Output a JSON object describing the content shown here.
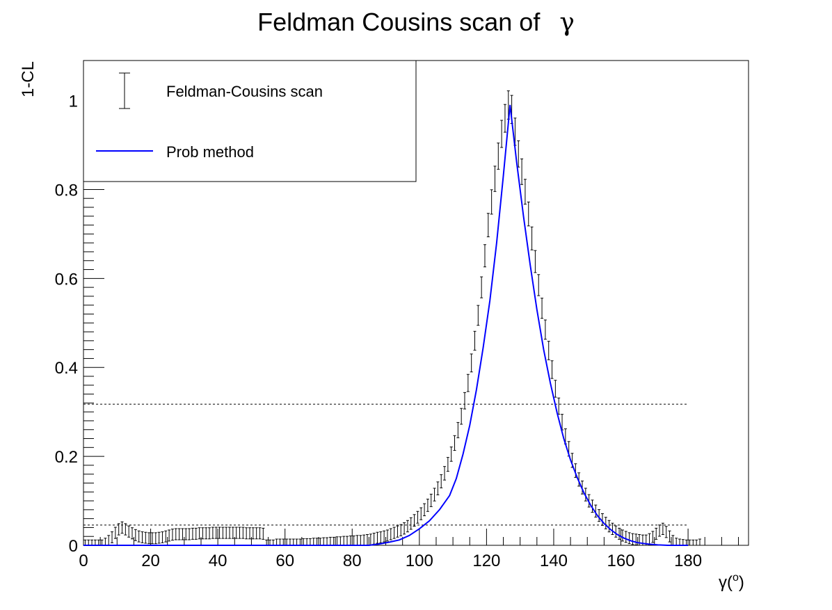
{
  "chart_data": {
    "type": "line",
    "title": "Feldman Cousins scan of",
    "title_symbol": "γ",
    "xlabel": "γ(",
    "xlabel_sup": "o",
    "xlabel_close": ")",
    "ylabel": "1-CL",
    "xlim": [
      0,
      198
    ],
    "ylim": [
      0,
      1.09
    ],
    "x_ticks": [
      "0",
      "20",
      "40",
      "60",
      "80",
      "100",
      "120",
      "140",
      "160",
      "180"
    ],
    "y_ticks": [
      "0",
      "0.2",
      "0.4",
      "0.6",
      "0.8",
      "1"
    ],
    "x_tick_values": [
      0,
      20,
      40,
      60,
      80,
      100,
      120,
      140,
      160,
      180
    ],
    "y_tick_values": [
      0,
      0.2,
      0.4,
      0.6,
      0.8,
      1.0
    ],
    "grid": false,
    "legend_position": "top-left",
    "reference_lines": [
      0.3173,
      0.0455
    ],
    "reference_line_xmax": 180,
    "colors": {
      "prob": "#0000ff",
      "fc": "#000000",
      "axis": "#000000"
    },
    "series": [
      {
        "name": "Feldman-Cousins scan",
        "style": "error-bars",
        "x_start": 0.5,
        "x_step": 1.0,
        "values": [
          0.0,
          0.0,
          0.0,
          0.0,
          0.0,
          0.0,
          0.004,
          0.01,
          0.018,
          0.028,
          0.036,
          0.04,
          0.036,
          0.031,
          0.027,
          0.023,
          0.02,
          0.018,
          0.017,
          0.016,
          0.016,
          0.016,
          0.017,
          0.018,
          0.02,
          0.022,
          0.024,
          0.025,
          0.025,
          0.025,
          0.025,
          0.025,
          0.026,
          0.026,
          0.027,
          0.027,
          0.027,
          0.027,
          0.028,
          0.028,
          0.028,
          0.028,
          0.028,
          0.028,
          0.028,
          0.028,
          0.028,
          0.028,
          0.027,
          0.027,
          0.027,
          0.027,
          0.027,
          0.026,
          0.0,
          0.0,
          0.0,
          0.002,
          0.002,
          0.002,
          0.002,
          0.002,
          0.002,
          0.002,
          0.002,
          0.003,
          0.003,
          0.003,
          0.004,
          0.004,
          0.004,
          0.005,
          0.005,
          0.006,
          0.006,
          0.007,
          0.007,
          0.008,
          0.008,
          0.009,
          0.009,
          0.01,
          0.01,
          0.011,
          0.012,
          0.013,
          0.015,
          0.017,
          0.018,
          0.02,
          0.022,
          0.025,
          0.028,
          0.031,
          0.034,
          0.038,
          0.043,
          0.049,
          0.056,
          0.063,
          0.071,
          0.08,
          0.09,
          0.101,
          0.114,
          0.128,
          0.144,
          0.162,
          0.182,
          0.205,
          0.23,
          0.259,
          0.29,
          0.325,
          0.365,
          0.41,
          0.46,
          0.517,
          0.58,
          0.651,
          0.72,
          0.772,
          0.824,
          0.875,
          0.925,
          0.96,
          0.99,
          0.98,
          0.93,
          0.88,
          0.84,
          0.795,
          0.745,
          0.69,
          0.638,
          0.585,
          0.533,
          0.485,
          0.438,
          0.395,
          0.352,
          0.313,
          0.277,
          0.245,
          0.217,
          0.191,
          0.168,
          0.148,
          0.13,
          0.114,
          0.1,
          0.088,
          0.077,
          0.067,
          0.058,
          0.05,
          0.043,
          0.037,
          0.031,
          0.026,
          0.022,
          0.019,
          0.016,
          0.014,
          0.013,
          0.012,
          0.011,
          0.011,
          0.014,
          0.019,
          0.026,
          0.033,
          0.037,
          0.03,
          0.02,
          0.01,
          0.004,
          0.002,
          0.001,
          0.0,
          0.0,
          0.0,
          0.0,
          0.002
        ]
      },
      {
        "name": "Prob method",
        "style": "line",
        "peak_x": 127,
        "peak_y": 0.99,
        "curve_points": [
          [
            0,
            0.0
          ],
          [
            85,
            0.0
          ],
          [
            88,
            0.003
          ],
          [
            91,
            0.007
          ],
          [
            94,
            0.012
          ],
          [
            97,
            0.022
          ],
          [
            100,
            0.037
          ],
          [
            103,
            0.055
          ],
          [
            106,
            0.08
          ],
          [
            109,
            0.112
          ],
          [
            111,
            0.15
          ],
          [
            113,
            0.205
          ],
          [
            115,
            0.27
          ],
          [
            117,
            0.35
          ],
          [
            119,
            0.445
          ],
          [
            121,
            0.55
          ],
          [
            123,
            0.68
          ],
          [
            125,
            0.83
          ],
          [
            127,
            0.99
          ],
          [
            129,
            0.86
          ],
          [
            131,
            0.74
          ],
          [
            133,
            0.63
          ],
          [
            135,
            0.53
          ],
          [
            137,
            0.44
          ],
          [
            139,
            0.365
          ],
          [
            141,
            0.298
          ],
          [
            143,
            0.24
          ],
          [
            145,
            0.192
          ],
          [
            147,
            0.152
          ],
          [
            149,
            0.118
          ],
          [
            151,
            0.09
          ],
          [
            153,
            0.067
          ],
          [
            155,
            0.049
          ],
          [
            157,
            0.035
          ],
          [
            159,
            0.024
          ],
          [
            161,
            0.016
          ],
          [
            163,
            0.01
          ],
          [
            165,
            0.006
          ],
          [
            168,
            0.003
          ],
          [
            171,
            0.001
          ],
          [
            174,
            0.0
          ],
          [
            180,
            0.0
          ]
        ]
      }
    ]
  }
}
